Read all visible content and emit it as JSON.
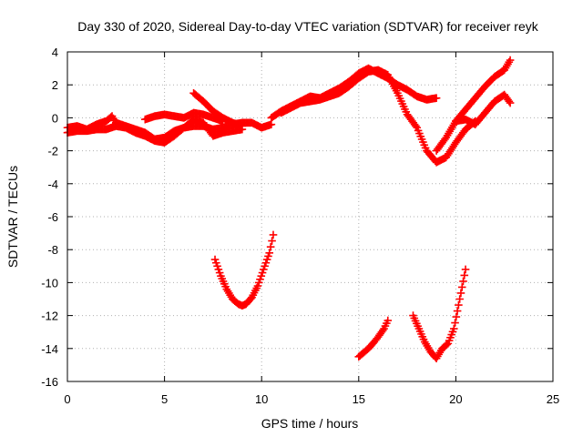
{
  "chart_data": {
    "type": "scatter",
    "title": "Day 330 of 2020, Sidereal Day-to-day VTEC variation (SDTVAR) for receiver reyk",
    "xlabel": "GPS time / hours",
    "ylabel": "SDTVAR / TECUs",
    "xlim": [
      0,
      25
    ],
    "ylim": [
      -16,
      4
    ],
    "xticks": [
      0,
      5,
      10,
      15,
      20,
      25
    ],
    "yticks": [
      -16,
      -14,
      -12,
      -10,
      -8,
      -6,
      -4,
      -2,
      0,
      2,
      4
    ],
    "xtick_labels": [
      "0",
      "5",
      "10",
      "15",
      "20",
      "25"
    ],
    "ytick_labels": [
      "-16",
      "-14",
      "-12",
      "-10",
      "-8",
      "-6",
      "-4",
      "-2",
      "0",
      "2",
      "4"
    ],
    "grid": true,
    "marker": "plus",
    "series": [
      {
        "name": "track-a",
        "color": "#ff0000",
        "x": [
          0.0,
          0.5,
          1.0,
          1.5,
          2.0,
          2.3,
          2.5,
          3.0,
          3.5,
          4.0,
          4.5,
          5.0,
          5.5,
          6.0,
          6.5,
          7.0,
          7.5,
          8.0,
          8.5,
          9.0,
          9.5,
          10.0,
          10.5
        ],
        "y": [
          -0.6,
          -0.5,
          -0.7,
          -0.4,
          -0.2,
          0.1,
          -0.3,
          -0.5,
          -0.7,
          -0.9,
          -1.3,
          -1.2,
          -0.8,
          -0.6,
          -0.5,
          -0.5,
          -0.7,
          -0.6,
          -0.4,
          -0.3,
          -0.3,
          -0.6,
          -0.4
        ]
      },
      {
        "name": "track-b",
        "color": "#ff0000",
        "x": [
          0.0,
          0.5,
          1.0,
          1.5,
          2.0,
          2.5,
          3.0,
          3.5,
          4.0,
          4.5,
          5.0,
          5.5,
          6.0,
          6.5,
          7.0,
          7.5,
          8.0,
          8.5,
          9.0
        ],
        "y": [
          -0.9,
          -0.8,
          -0.8,
          -0.7,
          -0.7,
          -0.5,
          -0.6,
          -0.9,
          -1.1,
          -1.4,
          -1.5,
          -1.1,
          -0.6,
          -0.1,
          -0.3,
          -1.1,
          -0.9,
          -0.8,
          -0.7
        ]
      },
      {
        "name": "track-c",
        "color": "#ff0000",
        "x": [
          4.0,
          4.5,
          5.0,
          5.5,
          6.0,
          6.5,
          7.0,
          7.5,
          8.0
        ],
        "y": [
          -0.1,
          0.1,
          0.2,
          0.1,
          0.0,
          0.3,
          0.2,
          0.0,
          -0.2
        ]
      },
      {
        "name": "track-d",
        "color": "#ff0000",
        "x": [
          6.5,
          7.0,
          7.5,
          8.0,
          8.5,
          9.0
        ],
        "y": [
          1.5,
          1.0,
          0.4,
          0.0,
          -0.3,
          -0.5
        ]
      },
      {
        "name": "track-e",
        "color": "#ff0000",
        "x": [
          10.5,
          11.0,
          11.5,
          12.0,
          12.5,
          13.0,
          13.5,
          14.0,
          14.5,
          15.0,
          15.5,
          16.0,
          16.5,
          17.0,
          17.5,
          18.0,
          18.5,
          19.0
        ],
        "y": [
          0.0,
          0.4,
          0.7,
          1.0,
          1.3,
          1.2,
          1.5,
          1.8,
          2.2,
          2.7,
          3.0,
          2.7,
          2.4,
          2.0,
          1.7,
          1.3,
          1.1,
          1.2
        ]
      },
      {
        "name": "track-f",
        "color": "#ff0000",
        "x": [
          11.0,
          11.5,
          12.0,
          12.5,
          13.0,
          13.5,
          14.0,
          14.5,
          15.0,
          15.5,
          16.0,
          16.5,
          17.0,
          17.5,
          18.0,
          18.5,
          19.0,
          19.5,
          20.0,
          20.5,
          21.0
        ],
        "y": [
          0.3,
          0.6,
          0.9,
          1.0,
          1.1,
          1.3,
          1.5,
          1.9,
          2.4,
          2.8,
          2.9,
          2.6,
          1.5,
          0.2,
          -0.6,
          -2.0,
          -2.7,
          -2.4,
          -1.5,
          -0.7,
          -0.2
        ]
      },
      {
        "name": "track-g",
        "color": "#ff0000",
        "x": [
          19.0,
          19.5,
          20.0,
          20.5,
          21.0,
          21.5,
          22.0,
          22.5,
          22.8
        ],
        "y": [
          -2.0,
          -1.2,
          -0.2,
          0.5,
          1.2,
          1.9,
          2.5,
          2.9,
          3.5
        ]
      },
      {
        "name": "track-h",
        "color": "#ff0000",
        "x": [
          20.0,
          20.5,
          21.0,
          21.5,
          22.0,
          22.5,
          22.8
        ],
        "y": [
          -0.2,
          -0.1,
          -0.4,
          0.3,
          1.0,
          1.4,
          0.9
        ]
      },
      {
        "name": "arc-1",
        "color": "#ff0000",
        "x": [
          7.6,
          7.9,
          8.2,
          8.5,
          8.8,
          9.0,
          9.2,
          9.5,
          9.8,
          10.1,
          10.4,
          10.6
        ],
        "y": [
          -8.6,
          -9.6,
          -10.4,
          -11.0,
          -11.3,
          -11.4,
          -11.3,
          -10.9,
          -10.2,
          -9.2,
          -8.2,
          -7.1
        ]
      },
      {
        "name": "arc-2",
        "color": "#ff0000",
        "x": [
          15.0,
          15.2,
          15.5,
          15.8,
          16.0,
          16.3,
          16.5
        ],
        "y": [
          -14.5,
          -14.3,
          -14.0,
          -13.6,
          -13.3,
          -12.8,
          -12.3
        ]
      },
      {
        "name": "arc-3",
        "color": "#ff0000",
        "x": [
          17.8,
          18.1,
          18.4,
          18.7,
          19.0,
          19.3,
          19.6,
          19.9,
          20.2,
          20.5
        ],
        "y": [
          -12.0,
          -12.8,
          -13.6,
          -14.2,
          -14.6,
          -14.0,
          -13.7,
          -12.8,
          -11.0,
          -9.2
        ]
      }
    ]
  }
}
